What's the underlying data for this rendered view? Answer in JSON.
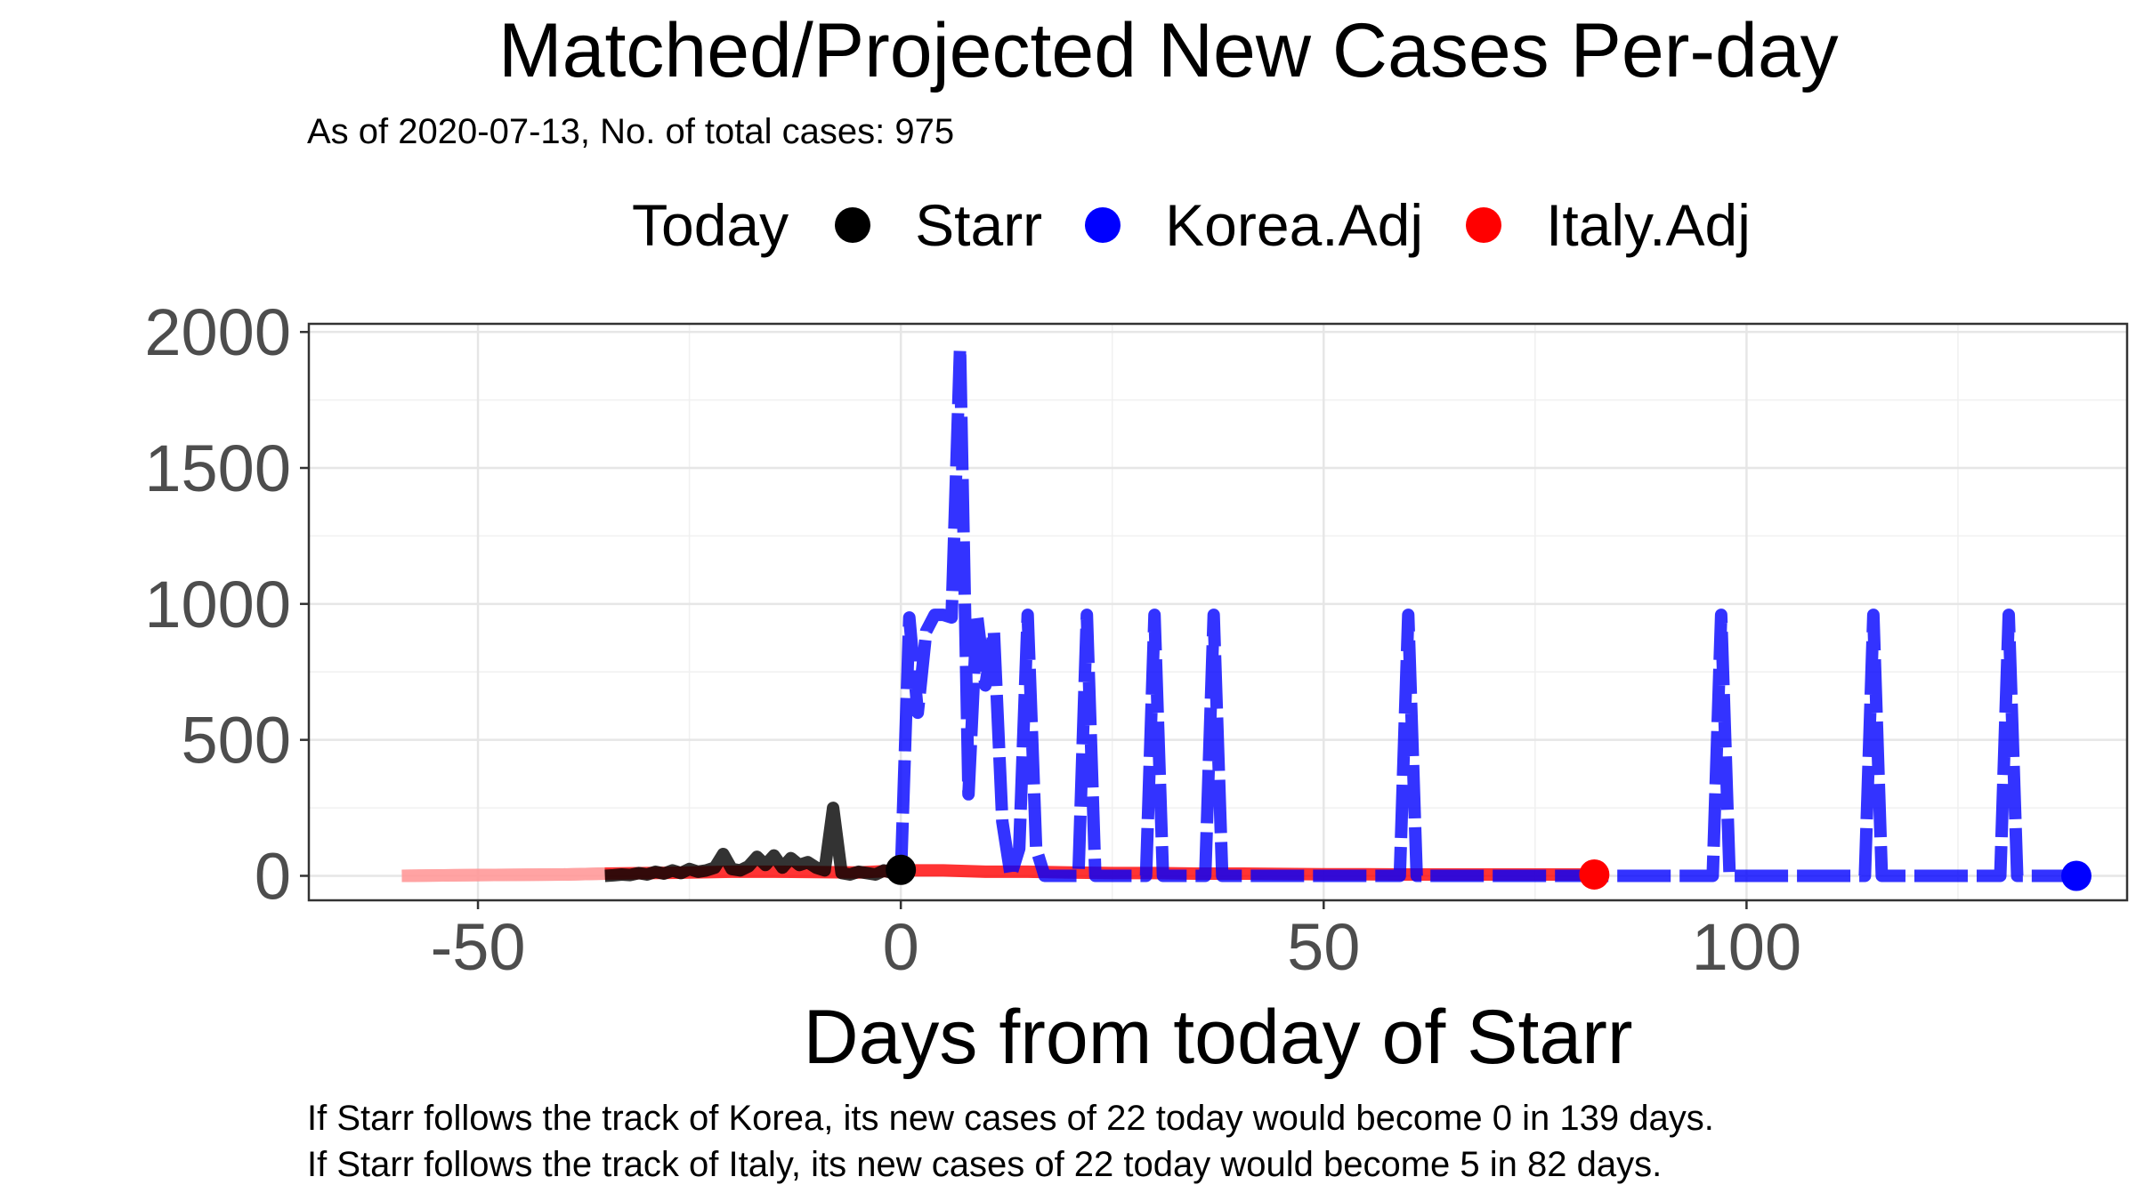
{
  "chart_data": {
    "type": "line",
    "title": "Matched/Projected New Cases Per-day",
    "subtitle": "As of 2020-07-13, No. of total cases: 975",
    "xlabel": "Days from today of Starr",
    "ylabel": "",
    "xlim": [
      -70,
      145
    ],
    "ylim": [
      -90,
      2030
    ],
    "xticks": [
      -50,
      0,
      50,
      100
    ],
    "yticks": [
      0,
      500,
      1000,
      1500,
      2000
    ],
    "grid": true,
    "legend": {
      "title": "Today",
      "placement": "top",
      "entries": [
        {
          "label": "Starr",
          "color": "#000000"
        },
        {
          "label": "Korea.Adj",
          "color": "#0000ff"
        },
        {
          "label": "Italy.Adj",
          "color": "#ff0000"
        }
      ]
    },
    "series": [
      {
        "name": "Starr",
        "color": "#000000",
        "x": [
          -35,
          -34,
          -33,
          -32,
          -31,
          -30,
          -29,
          -28,
          -27,
          -26,
          -25,
          -24,
          -23,
          -22,
          -21,
          -20,
          -19,
          -18,
          -17,
          -16,
          -15,
          -14,
          -13,
          -12,
          -11,
          -10,
          -9,
          -8,
          -7,
          -6,
          -5,
          -4,
          -3,
          -2,
          -1,
          0
        ],
        "y": [
          0,
          2,
          5,
          3,
          10,
          5,
          15,
          8,
          20,
          10,
          25,
          15,
          20,
          30,
          80,
          25,
          20,
          35,
          70,
          40,
          75,
          30,
          65,
          40,
          50,
          30,
          20,
          250,
          10,
          5,
          15,
          10,
          5,
          20,
          10,
          22
        ]
      },
      {
        "name": "Korea.Adj",
        "color": "#0000ff",
        "x": [
          0,
          1,
          2,
          3,
          4,
          5,
          6,
          7,
          8,
          9,
          10,
          11,
          12,
          13,
          14,
          15,
          16,
          17,
          18,
          19,
          20,
          21,
          22,
          23,
          24,
          25,
          26,
          27,
          28,
          29,
          30,
          31,
          32,
          33,
          34,
          35,
          36,
          37,
          38,
          39,
          40,
          45,
          50,
          55,
          58,
          59,
          60,
          61,
          62,
          63,
          70,
          80,
          90,
          95,
          96,
          97,
          98,
          99,
          100,
          105,
          110,
          113,
          114,
          115,
          116,
          117,
          118,
          125,
          130,
          131,
          132,
          133,
          134,
          139
        ],
        "y": [
          0,
          950,
          600,
          900,
          960,
          960,
          950,
          1940,
          300,
          960,
          700,
          900,
          200,
          0,
          100,
          960,
          100,
          0,
          0,
          0,
          0,
          0,
          960,
          0,
          0,
          0,
          0,
          0,
          0,
          0,
          960,
          0,
          0,
          0,
          0,
          0,
          0,
          960,
          0,
          0,
          0,
          0,
          0,
          0,
          0,
          0,
          960,
          0,
          0,
          0,
          0,
          0,
          0,
          0,
          0,
          960,
          0,
          0,
          0,
          0,
          0,
          0,
          0,
          960,
          0,
          0,
          0,
          0,
          0,
          960,
          0,
          0,
          0,
          0
        ]
      },
      {
        "name": "Italy.Adj",
        "color": "#ff0000",
        "x": [
          -59,
          -50,
          -40,
          -35,
          -30,
          -25,
          -20,
          -15,
          -10,
          -5,
          0,
          5,
          10,
          15,
          20,
          25,
          30,
          35,
          40,
          45,
          50,
          55,
          60,
          65,
          70,
          75,
          80,
          82
        ],
        "y": [
          0,
          3,
          5,
          8,
          10,
          12,
          15,
          15,
          14,
          12,
          20,
          20,
          15,
          15,
          12,
          10,
          10,
          8,
          8,
          7,
          6,
          6,
          5,
          5,
          5,
          5,
          5,
          5
        ]
      }
    ],
    "points": {
      "today_starr": {
        "x": 0,
        "y": 22
      },
      "korea_end": {
        "x": 139,
        "y": 0
      },
      "italy_end": {
        "x": 82,
        "y": 5
      }
    },
    "annotations": [
      "If Starr follows the track of Korea, its new cases of 22 today would become 0 in 139 days.",
      "If Starr follows the track of Italy, its new cases of 22 today would become 5 in 82 days."
    ]
  }
}
